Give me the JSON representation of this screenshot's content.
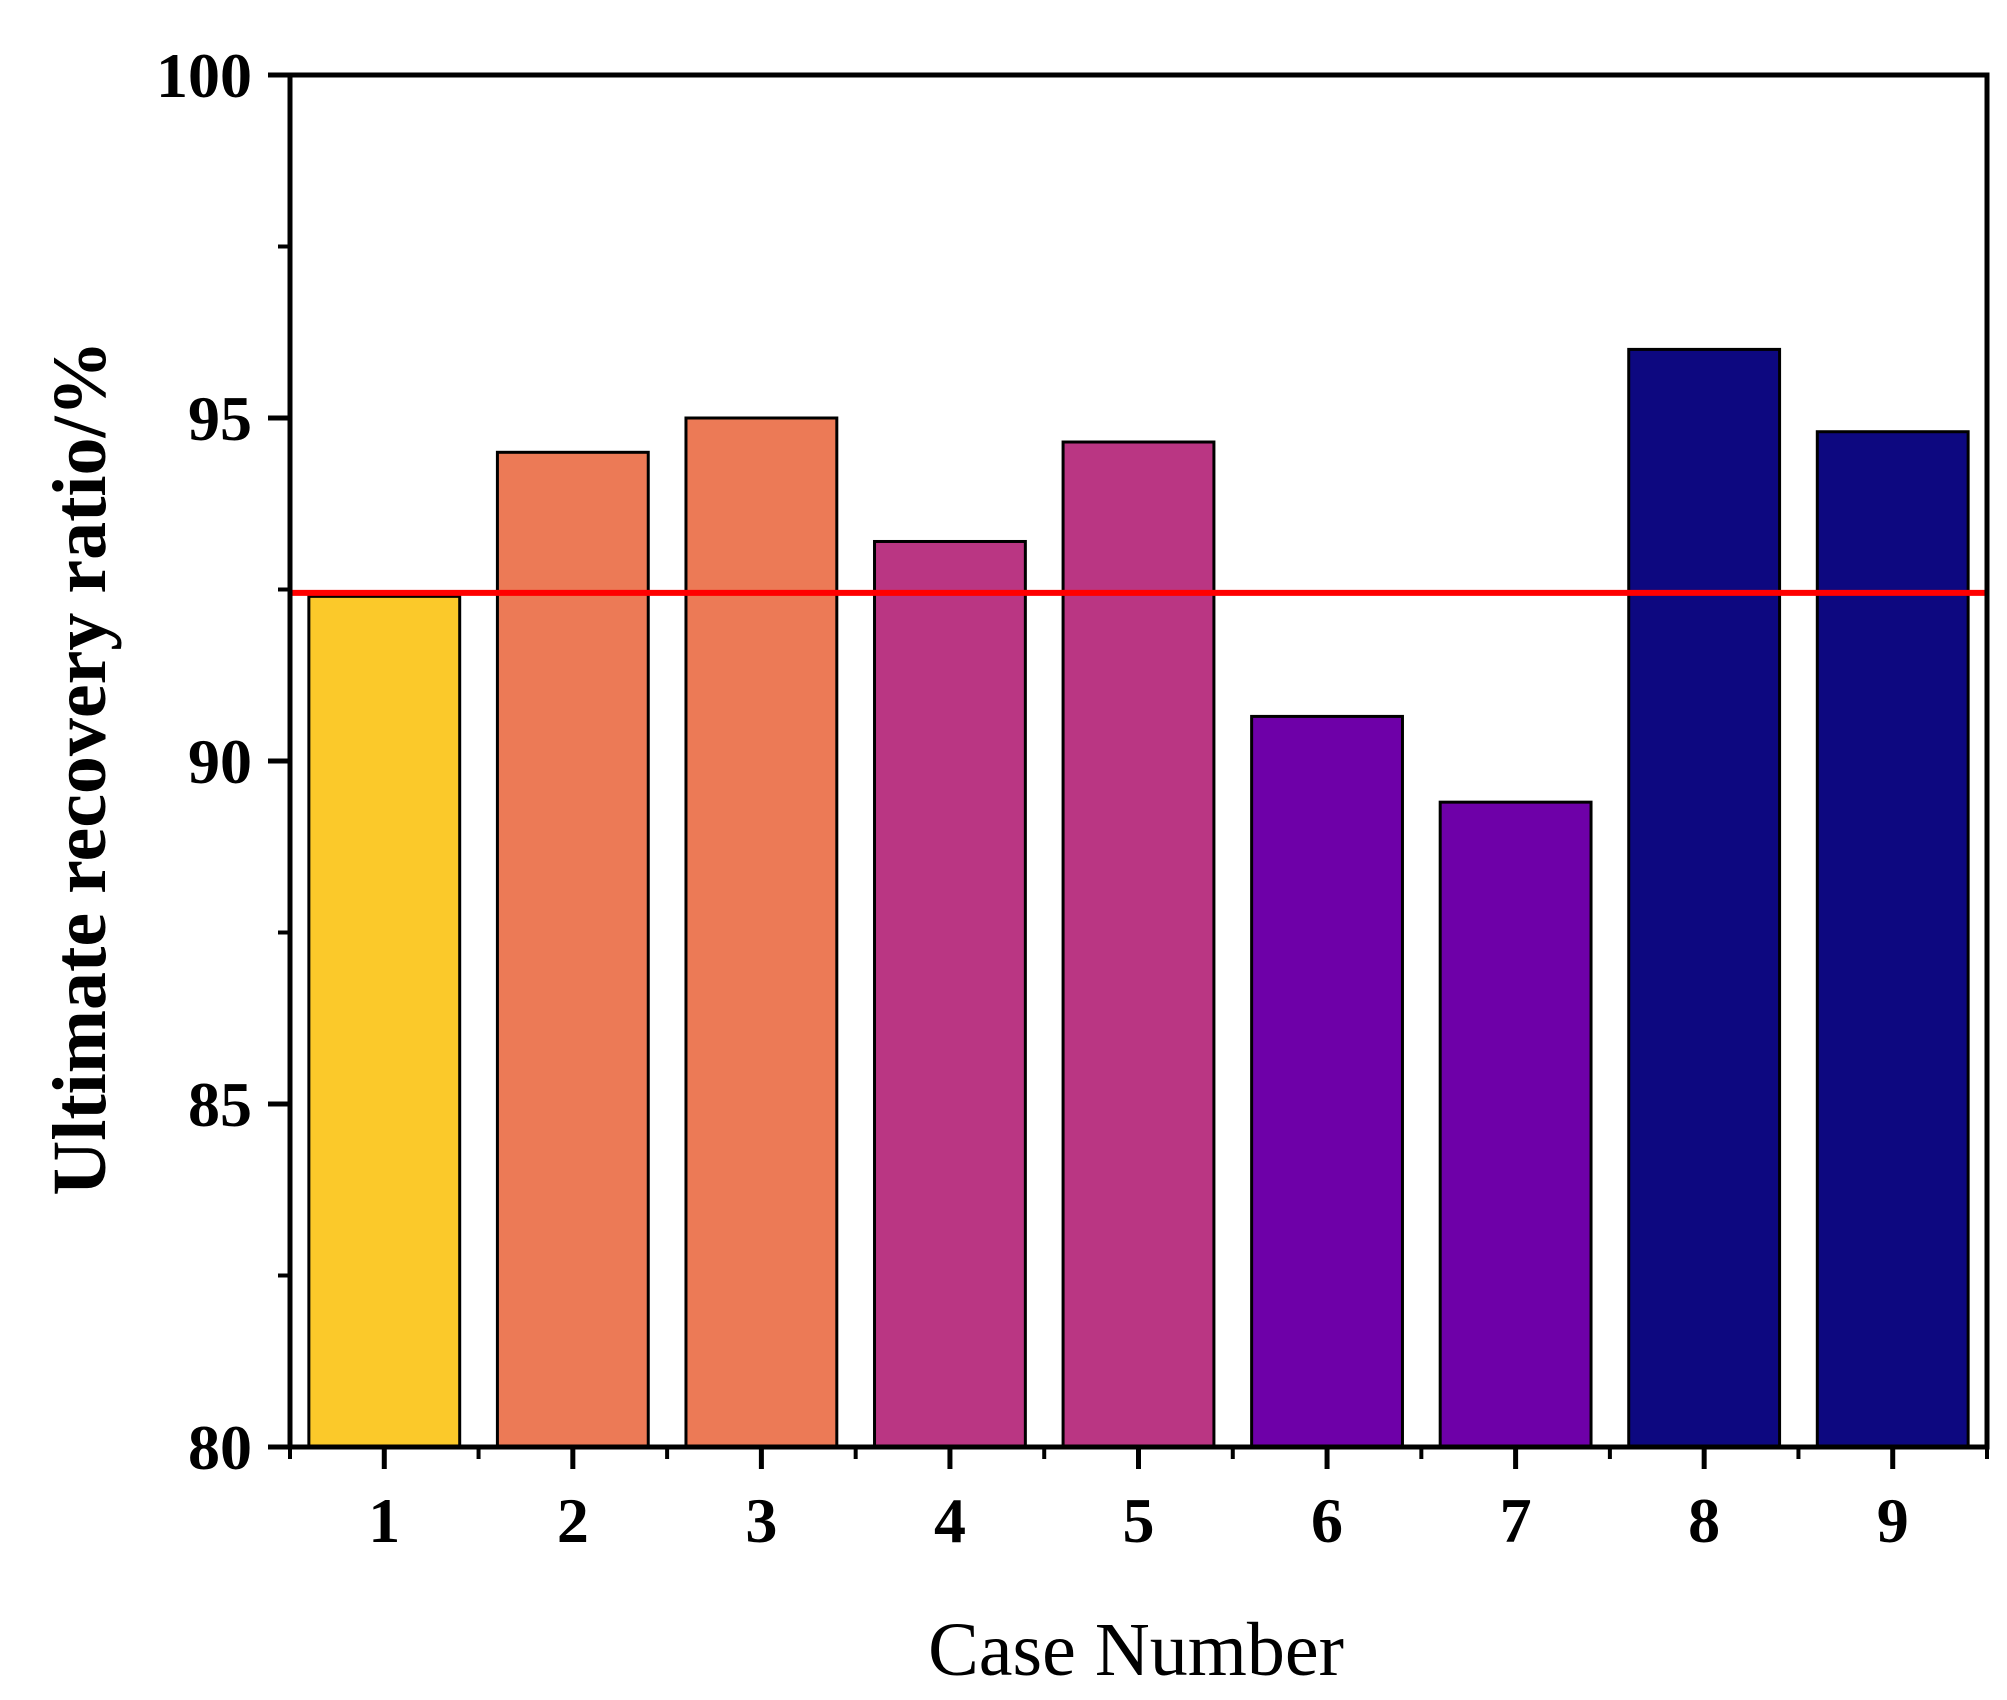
{
  "chart_data": {
    "type": "bar",
    "title": "",
    "xlabel": "Case Number",
    "ylabel": "Ultimate recovery ratio/%",
    "categories": [
      "1",
      "2",
      "3",
      "4",
      "5",
      "6",
      "7",
      "8",
      "9"
    ],
    "values": [
      92.4,
      94.5,
      95.0,
      93.2,
      94.65,
      90.65,
      89.4,
      96.0,
      94.8
    ],
    "bar_colors": [
      "#FBC92A",
      "#EC7A56",
      "#EC7A56",
      "#BA3683",
      "#BA3683",
      "#6E00A8",
      "#6E00A8",
      "#0D0880",
      "#0D0880"
    ],
    "ylim": [
      80,
      100
    ],
    "yticks": [
      "80",
      "85",
      "90",
      "95",
      "100"
    ],
    "reference_line": {
      "value": 92.45,
      "color": "#FF0000"
    },
    "grid": false,
    "legend": false
  }
}
